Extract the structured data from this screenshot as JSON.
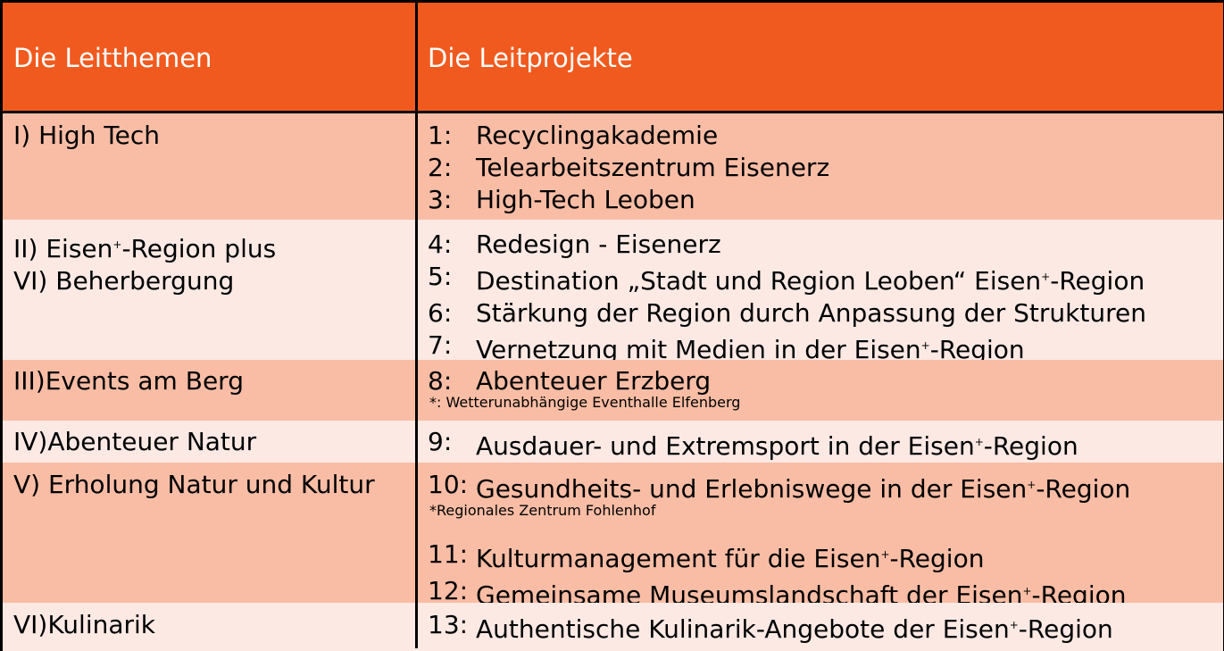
{
  "header": {
    "col1": "Die Leitthemen",
    "col2": "Die Leitprojekte"
  },
  "rows": [
    {
      "themes": [
        "I)  High Tech"
      ],
      "projects": [
        {
          "num": "1:",
          "text": "Recyclingakademie"
        },
        {
          "num": "2:",
          "text": "Telearbeitszentrum Eisenerz"
        },
        {
          "num": "3:",
          "text": "High-Tech Leoben"
        }
      ]
    },
    {
      "themes": [
        "II) Eisen+-Region plus",
        "VI) Beherbergung"
      ],
      "projects": [
        {
          "num": "4:",
          "text": "Redesign - Eisenerz"
        },
        {
          "num": "5:",
          "text": "Destination „Stadt und Region Leoben“ Eisen+-Region"
        },
        {
          "num": "6:",
          "text": "Stärkung der Region durch Anpassung der Strukturen"
        },
        {
          "num": "7:",
          "text": "Vernetzung mit Medien in der Eisen+-Region"
        }
      ]
    },
    {
      "themes": [
        "III)Events am Berg"
      ],
      "projects": [
        {
          "num": "8:",
          "text": "Abenteuer Erzberg"
        }
      ],
      "note": "*: Wetterunabhängige Eventhalle Elfenberg"
    },
    {
      "themes": [
        "IV)Abenteuer Natur"
      ],
      "projects": [
        {
          "num": "9:",
          "text": "Ausdauer- und Extremsport in der Eisen+-Region"
        }
      ]
    },
    {
      "themes": [
        "V) Erholung Natur und Kultur"
      ],
      "projects": [
        {
          "num": "10:",
          "text": "Gesundheits- und Erlebniswege in der Eisen+-Region"
        },
        {
          "num": "11:",
          "text": "Kulturmanagement für die Eisen+-Region"
        },
        {
          "num": "12:",
          "text": "Gemeinsame Museumslandschaft der Eisen+-Region"
        }
      ],
      "note": "*Regionales Zentrum Fohlenhof"
    },
    {
      "themes": [
        "VI)Kulinarik"
      ],
      "projects": [
        {
          "num": "13:",
          "text": "Authentische Kulinarik-Angebote der Eisen+-Region"
        }
      ]
    }
  ]
}
